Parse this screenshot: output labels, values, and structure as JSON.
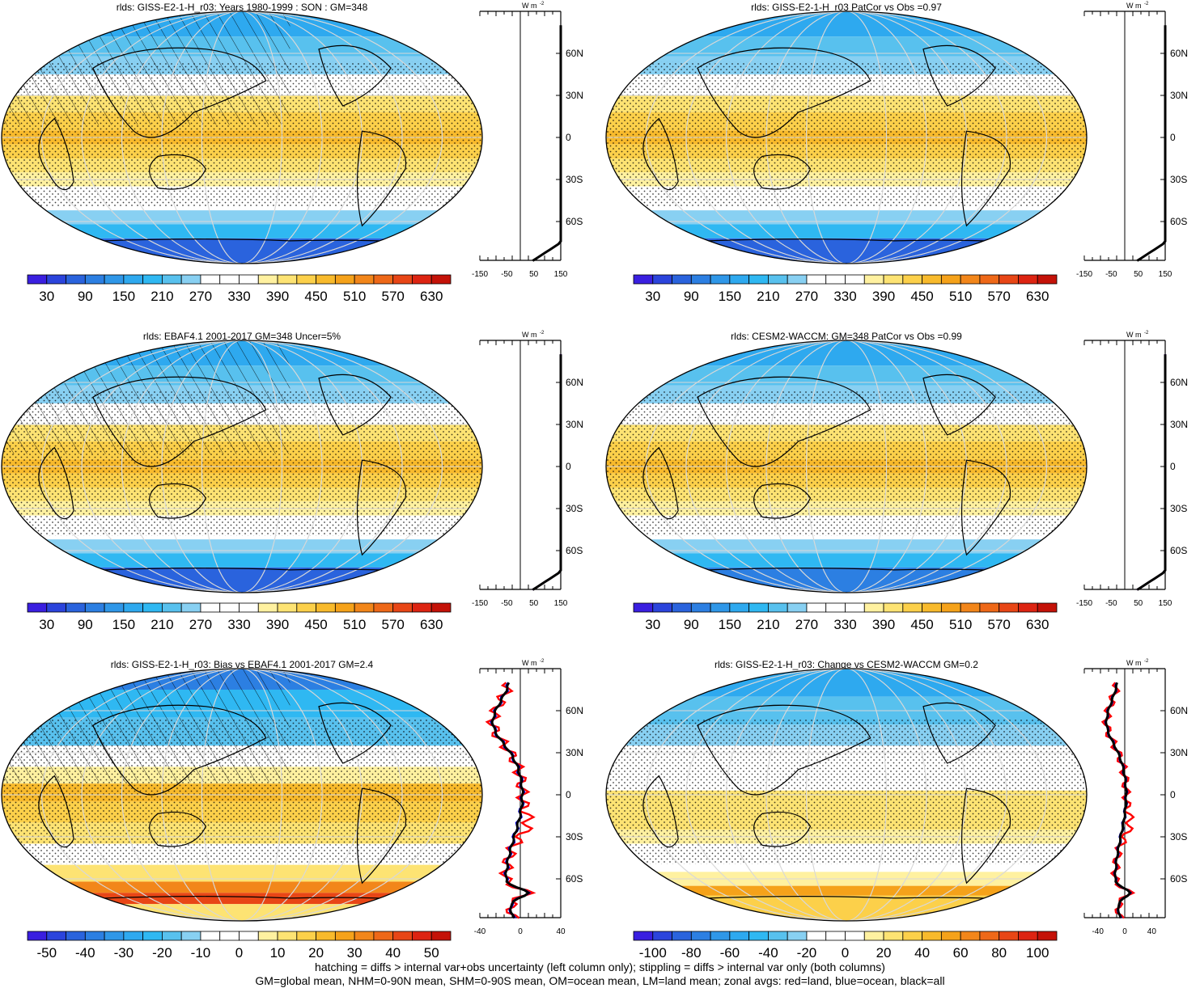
{
  "colors": {
    "abs_scale": [
      "#3a1fe0",
      "#2b44dc",
      "#2a63dd",
      "#2c7fe2",
      "#2f97e8",
      "#2ea9ef",
      "#2fb8f2",
      "#58c1ee",
      "#88d0f2",
      "#ffffff",
      "#ffffff",
      "#fff1a0",
      "#fde373",
      "#fcd04a",
      "#f8ba2c",
      "#f5a21a",
      "#f2861a",
      "#ee6818",
      "#e84616",
      "#dd2412",
      "#c41208"
    ],
    "diff_scale": [
      "#3a1fe0",
      "#2b44dc",
      "#2a63dd",
      "#2c7fe2",
      "#2f97e8",
      "#2ea9ef",
      "#2fb8f2",
      "#58c1ee",
      "#88d0f2",
      "#ffffff",
      "#ffffff",
      "#fff1a0",
      "#fde373",
      "#fcd04a",
      "#f8ba2c",
      "#f5a21a",
      "#f2861a",
      "#ee6818",
      "#e84616",
      "#dd2412",
      "#c41208"
    ],
    "land": "#ff0000",
    "ocean": "#0000ff",
    "all": "#000000"
  },
  "chart_data": [
    {
      "type": "heatmap",
      "title": "rlds: GISS-E2-1-H_r03: Years 1980-1999 : SON : GM=348",
      "colorbar": {
        "labels": [
          "30",
          "90",
          "150",
          "210",
          "270",
          "330",
          "390",
          "450",
          "510",
          "570",
          "630"
        ],
        "min": 0,
        "max": 660,
        "bins": 22
      },
      "zonal_profile": {
        "x_ticks": [
          "-150",
          "-50",
          "50",
          "150"
        ],
        "y_ticks": [
          "60N",
          "30N",
          "0",
          "30S",
          "60S"
        ],
        "unit": "W m",
        "unit_sup": "-2",
        "xlim": [
          -150,
          150
        ]
      }
    },
    {
      "type": "heatmap",
      "title": "rlds: GISS-E2-1-H_r03 PatCor vs Obs =0.97",
      "colorbar": {
        "labels": [
          "30",
          "90",
          "150",
          "210",
          "270",
          "330",
          "390",
          "450",
          "510",
          "570",
          "630"
        ],
        "min": 0,
        "max": 660,
        "bins": 22
      },
      "zonal_profile": {
        "x_ticks": [
          "-150",
          "-50",
          "50",
          "150"
        ],
        "y_ticks": [
          "60N",
          "30N",
          "0",
          "30S",
          "60S"
        ],
        "unit": "W m",
        "unit_sup": "-2",
        "xlim": [
          -150,
          150
        ]
      }
    },
    {
      "type": "heatmap",
      "title": "rlds: EBAF4.1 2001-2017 GM=348 Uncer=5%",
      "colorbar": {
        "labels": [
          "30",
          "90",
          "150",
          "210",
          "270",
          "330",
          "390",
          "450",
          "510",
          "570",
          "630"
        ],
        "min": 0,
        "max": 660,
        "bins": 22
      },
      "zonal_profile": {
        "x_ticks": [
          "-150",
          "-50",
          "50",
          "150"
        ],
        "y_ticks": [
          "60N",
          "30N",
          "0",
          "30S",
          "60S"
        ],
        "unit": "W m",
        "unit_sup": "-2",
        "xlim": [
          -150,
          150
        ]
      }
    },
    {
      "type": "heatmap",
      "title": "rlds: CESM2-WACCM: GM=348 PatCor vs Obs =0.99",
      "colorbar": {
        "labels": [
          "30",
          "90",
          "150",
          "210",
          "270",
          "330",
          "390",
          "450",
          "510",
          "570",
          "630"
        ],
        "min": 0,
        "max": 660,
        "bins": 22
      },
      "zonal_profile": {
        "x_ticks": [
          "-150",
          "-50",
          "50",
          "150"
        ],
        "y_ticks": [
          "60N",
          "30N",
          "0",
          "30S",
          "60S"
        ],
        "unit": "W m",
        "unit_sup": "-2",
        "xlim": [
          -150,
          150
        ]
      }
    },
    {
      "type": "heatmap",
      "title": "rlds: GISS-E2-1-H_r03: Bias vs EBAF4.1 2001-2017  GM=2.4",
      "colorbar": {
        "labels": [
          "-50",
          "-40",
          "-30",
          "-20",
          "-10",
          "0",
          "10",
          "20",
          "30",
          "40",
          "50"
        ],
        "min": -55,
        "max": 55,
        "bins": 22
      },
      "zonal_profile": {
        "x_ticks": [
          "-40",
          "0",
          "40"
        ],
        "y_ticks": [
          "60N",
          "30N",
          "0",
          "30S",
          "60S"
        ],
        "unit": "W m",
        "unit_sup": "-2",
        "xlim": [
          -40,
          40
        ]
      }
    },
    {
      "type": "heatmap",
      "title": "rlds: GISS-E2-1-H_r03: Change vs CESM2-WACCM GM=0.2",
      "colorbar": {
        "labels": [
          "-100",
          "-80",
          "-60",
          "-40",
          "-20",
          "0",
          "20",
          "40",
          "60",
          "80",
          "100"
        ],
        "min": -110,
        "max": 110,
        "bins": 22
      },
      "zonal_profile": {
        "x_ticks": [
          "-40",
          "0",
          "40"
        ],
        "y_ticks": [
          "60N",
          "30N",
          "0",
          "30S",
          "60S"
        ],
        "unit": "W m",
        "unit_sup": "-2",
        "xlim": [
          -60,
          60
        ]
      }
    }
  ],
  "footer": {
    "line1": "hatching = diffs > internal var+obs uncertainty (left column only); stippling = diffs > internal var only (both columns)",
    "line2": "GM=global mean, NHM=0-90N mean, SHM=0-90S mean, OM=ocean mean, LM=land mean; zonal avgs: red=land, blue=ocean, black=all"
  }
}
